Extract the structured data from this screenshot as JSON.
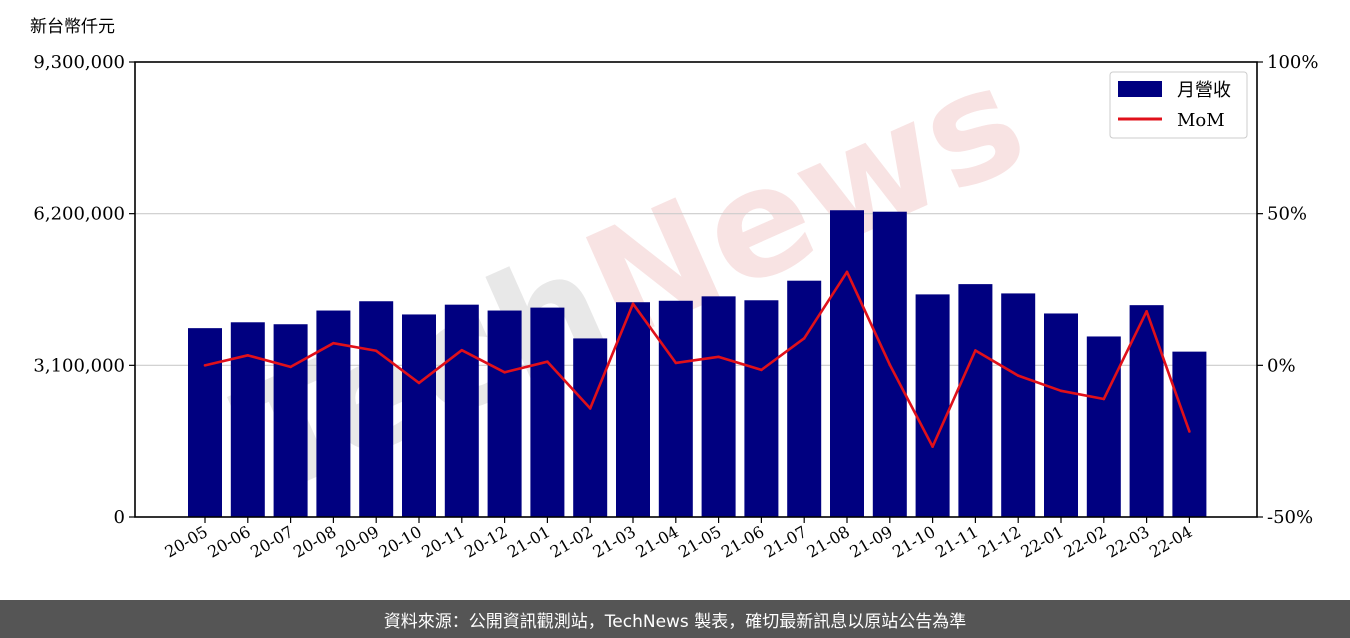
{
  "chart_data": {
    "type": "bar",
    "unit_label": "新台幣仟元",
    "watermark": "TechNews",
    "categories": [
      "20-05",
      "20-06",
      "20-07",
      "20-08",
      "20-09",
      "20-10",
      "20-11",
      "20-12",
      "21-01",
      "21-02",
      "21-03",
      "21-04",
      "21-05",
      "21-06",
      "21-07",
      "21-08",
      "21-09",
      "21-10",
      "21-11",
      "21-12",
      "22-01",
      "22-02",
      "22-03",
      "22-04"
    ],
    "series": [
      {
        "name": "月營收",
        "type": "bar",
        "axis": "left",
        "color": "#000080",
        "values": [
          3860000,
          3980000,
          3940000,
          4220000,
          4410000,
          4140000,
          4340000,
          4220000,
          4280000,
          3650000,
          4390000,
          4420000,
          4510000,
          4430000,
          4830000,
          6270000,
          6240000,
          4550000,
          4760000,
          4570000,
          4160000,
          3690000,
          4330000,
          3380000
        ]
      },
      {
        "name": "MoM",
        "type": "line",
        "axis": "right",
        "color": "#e0101a",
        "unit": "%",
        "values": [
          0,
          3.3,
          -0.5,
          7.3,
          4.8,
          -5.8,
          5,
          -2.3,
          1.2,
          -14.2,
          20.3,
          0.8,
          2.8,
          -1.5,
          8.9,
          30.8,
          0.2,
          -26.8,
          4.9,
          -3.4,
          -8.4,
          -11.1,
          17.8,
          -21.8
        ]
      }
    ],
    "y_left": {
      "ylim": [
        0,
        9300000
      ],
      "ticks": [
        0,
        3100000,
        6200000,
        9300000
      ],
      "tick_labels": [
        "0",
        "3,100,000",
        "6,200,000",
        "9,300,000"
      ]
    },
    "y_right": {
      "ylim": [
        -50,
        100
      ],
      "ticks": [
        -50,
        0,
        50,
        100
      ],
      "tick_labels": [
        "-50%",
        "0%",
        "50%",
        "100%"
      ]
    },
    "grid": true,
    "legend_position": "top-right"
  },
  "footer": {
    "source_text": "資料來源：公開資訊觀測站，TechNews 製表，確切最新訊息以原站公告為準"
  }
}
